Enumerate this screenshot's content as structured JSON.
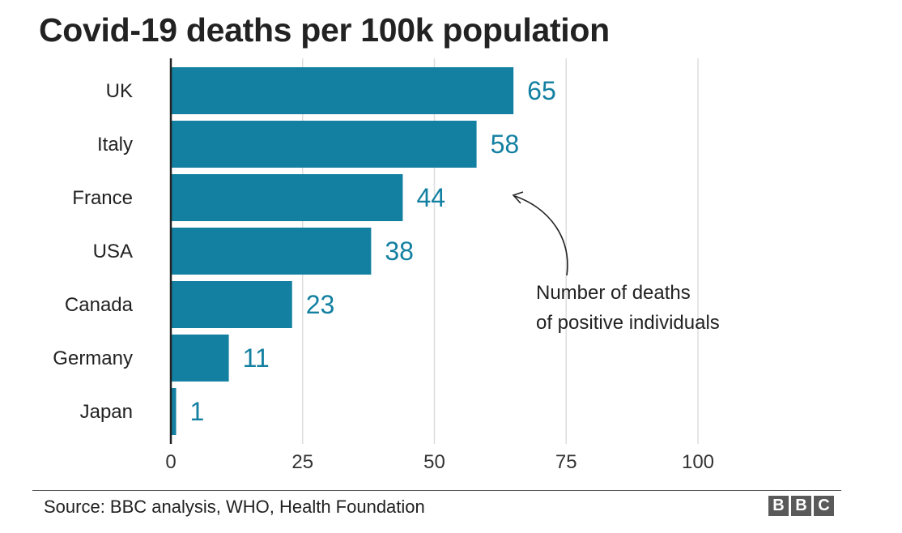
{
  "chart_data": {
    "type": "bar",
    "orientation": "horizontal",
    "title": "Covid-19 deaths per 100k population",
    "categories": [
      "UK",
      "Italy",
      "France",
      "USA",
      "Canada",
      "Germany",
      "Japan"
    ],
    "values": [
      65,
      58,
      44,
      38,
      23,
      11,
      1
    ],
    "value_labels": [
      "65",
      "58",
      "44",
      "38",
      "23",
      "11",
      "1"
    ],
    "xlim": [
      0,
      100
    ],
    "xticks": [
      0,
      25,
      50,
      75,
      100
    ],
    "xtick_labels": [
      "0",
      "25",
      "50",
      "75",
      "100"
    ],
    "grid": "vertical",
    "bar_color": "#1380A1",
    "label_color": "#1380A1",
    "annotation": {
      "lines": [
        "Number of deaths",
        "of positive individuals"
      ],
      "points_to": "France"
    }
  },
  "footer": {
    "source": "Source: BBC analysis, WHO, Health Foundation",
    "logo_letters": [
      "B",
      "B",
      "C"
    ]
  }
}
